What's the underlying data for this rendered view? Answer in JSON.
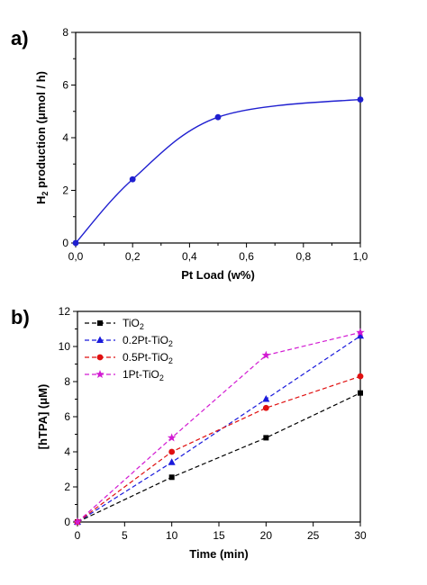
{
  "chart_data": [
    {
      "panel": "a)",
      "type": "line",
      "xlabel": "Pt Load (w%)",
      "ylabel_main": "H",
      "ylabel_sub": "2",
      "ylabel_rest": " production (μmol / h)",
      "xlim": [
        0,
        1.0
      ],
      "ylim": [
        0,
        8
      ],
      "xticks": [
        "0,0",
        "0,2",
        "0,4",
        "0,6",
        "0,8",
        "1,0"
      ],
      "xtick_values": [
        0,
        0.2,
        0.4,
        0.6,
        0.8,
        1.0
      ],
      "yticks": [
        "0",
        "2",
        "4",
        "6",
        "8"
      ],
      "ytick_values": [
        0,
        2,
        4,
        6,
        8
      ],
      "color": "#1f1fd0",
      "series": [
        {
          "x": [
            0,
            0.2,
            0.5,
            1.0
          ],
          "y": [
            0,
            2.42,
            4.78,
            5.45
          ]
        }
      ],
      "grid": false
    },
    {
      "panel": "b)",
      "type": "line",
      "xlabel": "Time (min)",
      "ylabel": "[hTPA] (μM)",
      "xlim": [
        0,
        30
      ],
      "ylim": [
        0,
        12
      ],
      "xticks": [
        "0",
        "5",
        "10",
        "15",
        "20",
        "25",
        "30"
      ],
      "xtick_values": [
        0,
        5,
        10,
        15,
        20,
        25,
        30
      ],
      "yticks": [
        "0",
        "2",
        "4",
        "6",
        "8",
        "10",
        "12"
      ],
      "ytick_values": [
        0,
        2,
        4,
        6,
        8,
        10,
        12
      ],
      "legend_position": "top-left",
      "grid": false,
      "x": [
        0,
        10,
        20,
        30
      ],
      "series": [
        {
          "name_main": "TiO",
          "name_sub": "2",
          "values": [
            0,
            2.55,
            4.8,
            7.35
          ],
          "color": "#000000",
          "marker": "square"
        },
        {
          "name_main": "0.2Pt-TiO",
          "name_sub": "2",
          "values": [
            0,
            3.4,
            7.0,
            10.6
          ],
          "color": "#1a1adb",
          "marker": "triangle"
        },
        {
          "name_main": "0.5Pt-TiO",
          "name_sub": "2",
          "values": [
            0,
            4.0,
            6.5,
            8.3
          ],
          "color": "#e01010",
          "marker": "circle"
        },
        {
          "name_main": "1Pt-TiO",
          "name_sub": "2",
          "values": [
            0,
            4.8,
            9.5,
            10.8
          ],
          "color": "#d21ad2",
          "marker": "star"
        }
      ]
    }
  ]
}
